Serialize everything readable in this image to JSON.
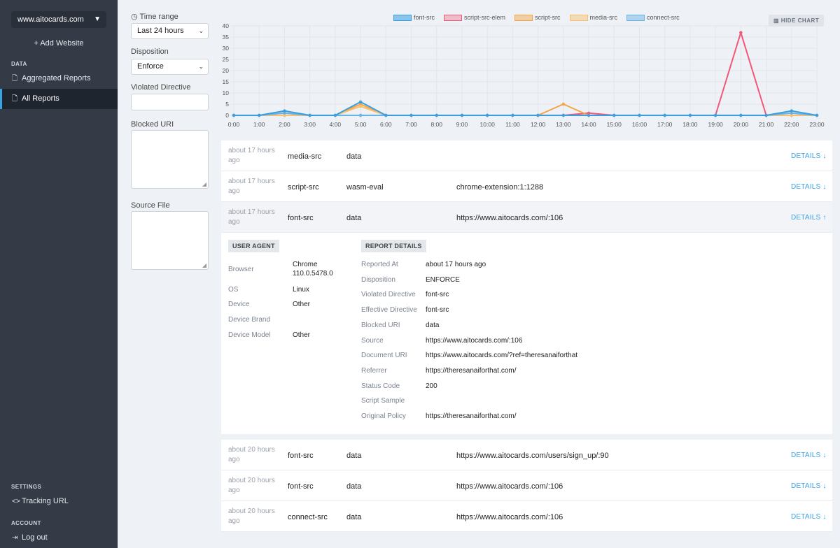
{
  "sidebar": {
    "site": "www.aitocards.com",
    "add_website": "+ Add Website",
    "data_head": "DATA",
    "aggregated": "Aggregated Reports",
    "all_reports": "All Reports",
    "settings_head": "SETTINGS",
    "tracking": "Tracking URL",
    "account_head": "ACCOUNT",
    "logout": "Log out"
  },
  "filters": {
    "time_range_label": "Time range",
    "time_range_value": "Last 24 hours",
    "disposition_label": "Disposition",
    "disposition_value": "Enforce",
    "violated_label": "Violated Directive",
    "blocked_label": "Blocked URI",
    "source_label": "Source File"
  },
  "hide_chart": "HIDE CHART",
  "colors": {
    "font-src": "#3a9fe0",
    "script-src-elem": "#f2587a",
    "script-src": "#f6a347",
    "media-src": "#f8c06e",
    "connect-src": "#67b2e6",
    "accent": "#3aa3e3"
  },
  "chart_data": {
    "type": "line",
    "x": [
      "0:00",
      "1:00",
      "2:00",
      "3:00",
      "4:00",
      "5:00",
      "6:00",
      "7:00",
      "8:00",
      "9:00",
      "10:00",
      "11:00",
      "12:00",
      "13:00",
      "14:00",
      "15:00",
      "16:00",
      "17:00",
      "18:00",
      "19:00",
      "20:00",
      "21:00",
      "22:00",
      "23:00"
    ],
    "ylim": [
      0,
      40
    ],
    "yticks": [
      0,
      5,
      10,
      15,
      20,
      25,
      30,
      35,
      40
    ],
    "grid": true,
    "legend_position": "top",
    "series": [
      {
        "name": "font-src",
        "values": [
          0,
          0,
          2,
          0,
          0,
          6,
          0,
          0,
          0,
          0,
          0,
          0,
          0,
          0,
          0,
          0,
          0,
          0,
          0,
          0,
          0,
          0,
          2,
          0
        ]
      },
      {
        "name": "script-src-elem",
        "values": [
          0,
          0,
          0,
          0,
          0,
          0,
          0,
          0,
          0,
          0,
          0,
          0,
          0,
          0,
          1,
          0,
          0,
          0,
          0,
          0,
          37,
          0,
          0,
          0
        ]
      },
      {
        "name": "script-src",
        "values": [
          0,
          0,
          1,
          0,
          0,
          5,
          0,
          0,
          0,
          0,
          0,
          0,
          0,
          5,
          0,
          0,
          0,
          0,
          0,
          0,
          0,
          0,
          0,
          0
        ]
      },
      {
        "name": "media-src",
        "values": [
          0,
          0,
          0,
          0,
          0,
          4,
          0,
          0,
          0,
          0,
          0,
          0,
          0,
          0,
          0,
          0,
          0,
          0,
          0,
          0,
          0,
          0,
          0,
          0
        ]
      },
      {
        "name": "connect-src",
        "values": [
          0,
          0,
          1,
          0,
          0,
          0,
          0,
          0,
          0,
          0,
          0,
          0,
          0,
          0,
          0,
          0,
          0,
          0,
          0,
          0,
          0,
          0,
          1,
          0
        ]
      }
    ]
  },
  "reports": [
    {
      "time": "about 17 hours ago",
      "directive": "media-src",
      "blocked": "data",
      "source": "",
      "details": "DETAILS ↓"
    },
    {
      "time": "about 17 hours ago",
      "directive": "script-src",
      "blocked": "wasm-eval",
      "source": "chrome-extension:1:1288",
      "details": "DETAILS ↓"
    },
    {
      "time": "about 17 hours ago",
      "directive": "font-src",
      "blocked": "data",
      "source": "https://www.aitocards.com/:106",
      "details": "DETAILS ↑"
    }
  ],
  "reports_after": [
    {
      "time": "about 20 hours ago",
      "directive": "font-src",
      "blocked": "data",
      "source": "https://www.aitocards.com/users/sign_up/:90",
      "details": "DETAILS ↓"
    },
    {
      "time": "about 20 hours ago",
      "directive": "font-src",
      "blocked": "data",
      "source": "https://www.aitocards.com/:106",
      "details": "DETAILS ↓"
    },
    {
      "time": "about 20 hours ago",
      "directive": "connect-src",
      "blocked": "data",
      "source": "https://www.aitocards.com/:106",
      "details": "DETAILS ↓"
    }
  ],
  "details": {
    "user_agent_tag": "USER AGENT",
    "report_details_tag": "REPORT DETAILS",
    "ua": [
      {
        "k": "Browser",
        "v": "Chrome 110.0.5478.0"
      },
      {
        "k": "OS",
        "v": "Linux"
      },
      {
        "k": "Device",
        "v": "Other"
      },
      {
        "k": "Device Brand",
        "v": ""
      },
      {
        "k": "Device Model",
        "v": "Other"
      }
    ],
    "rd": [
      {
        "k": "Reported At",
        "v": "about 17 hours ago"
      },
      {
        "k": "Disposition",
        "v": "ENFORCE"
      },
      {
        "k": "Violated Directive",
        "v": "font-src"
      },
      {
        "k": "Effective Directive",
        "v": "font-src"
      },
      {
        "k": "Blocked URI",
        "v": "data"
      },
      {
        "k": "Source",
        "v": "https://www.aitocards.com/:106"
      },
      {
        "k": "Document URI",
        "v": "https://www.aitocards.com/?ref=theresanaiforthat"
      },
      {
        "k": "Referrer",
        "v": "https://theresanaiforthat.com/"
      },
      {
        "k": "Status Code",
        "v": "200"
      },
      {
        "k": "Script Sample",
        "v": ""
      },
      {
        "k": "Original Policy",
        "v": "https://theresanaiforthat.com/"
      }
    ]
  }
}
